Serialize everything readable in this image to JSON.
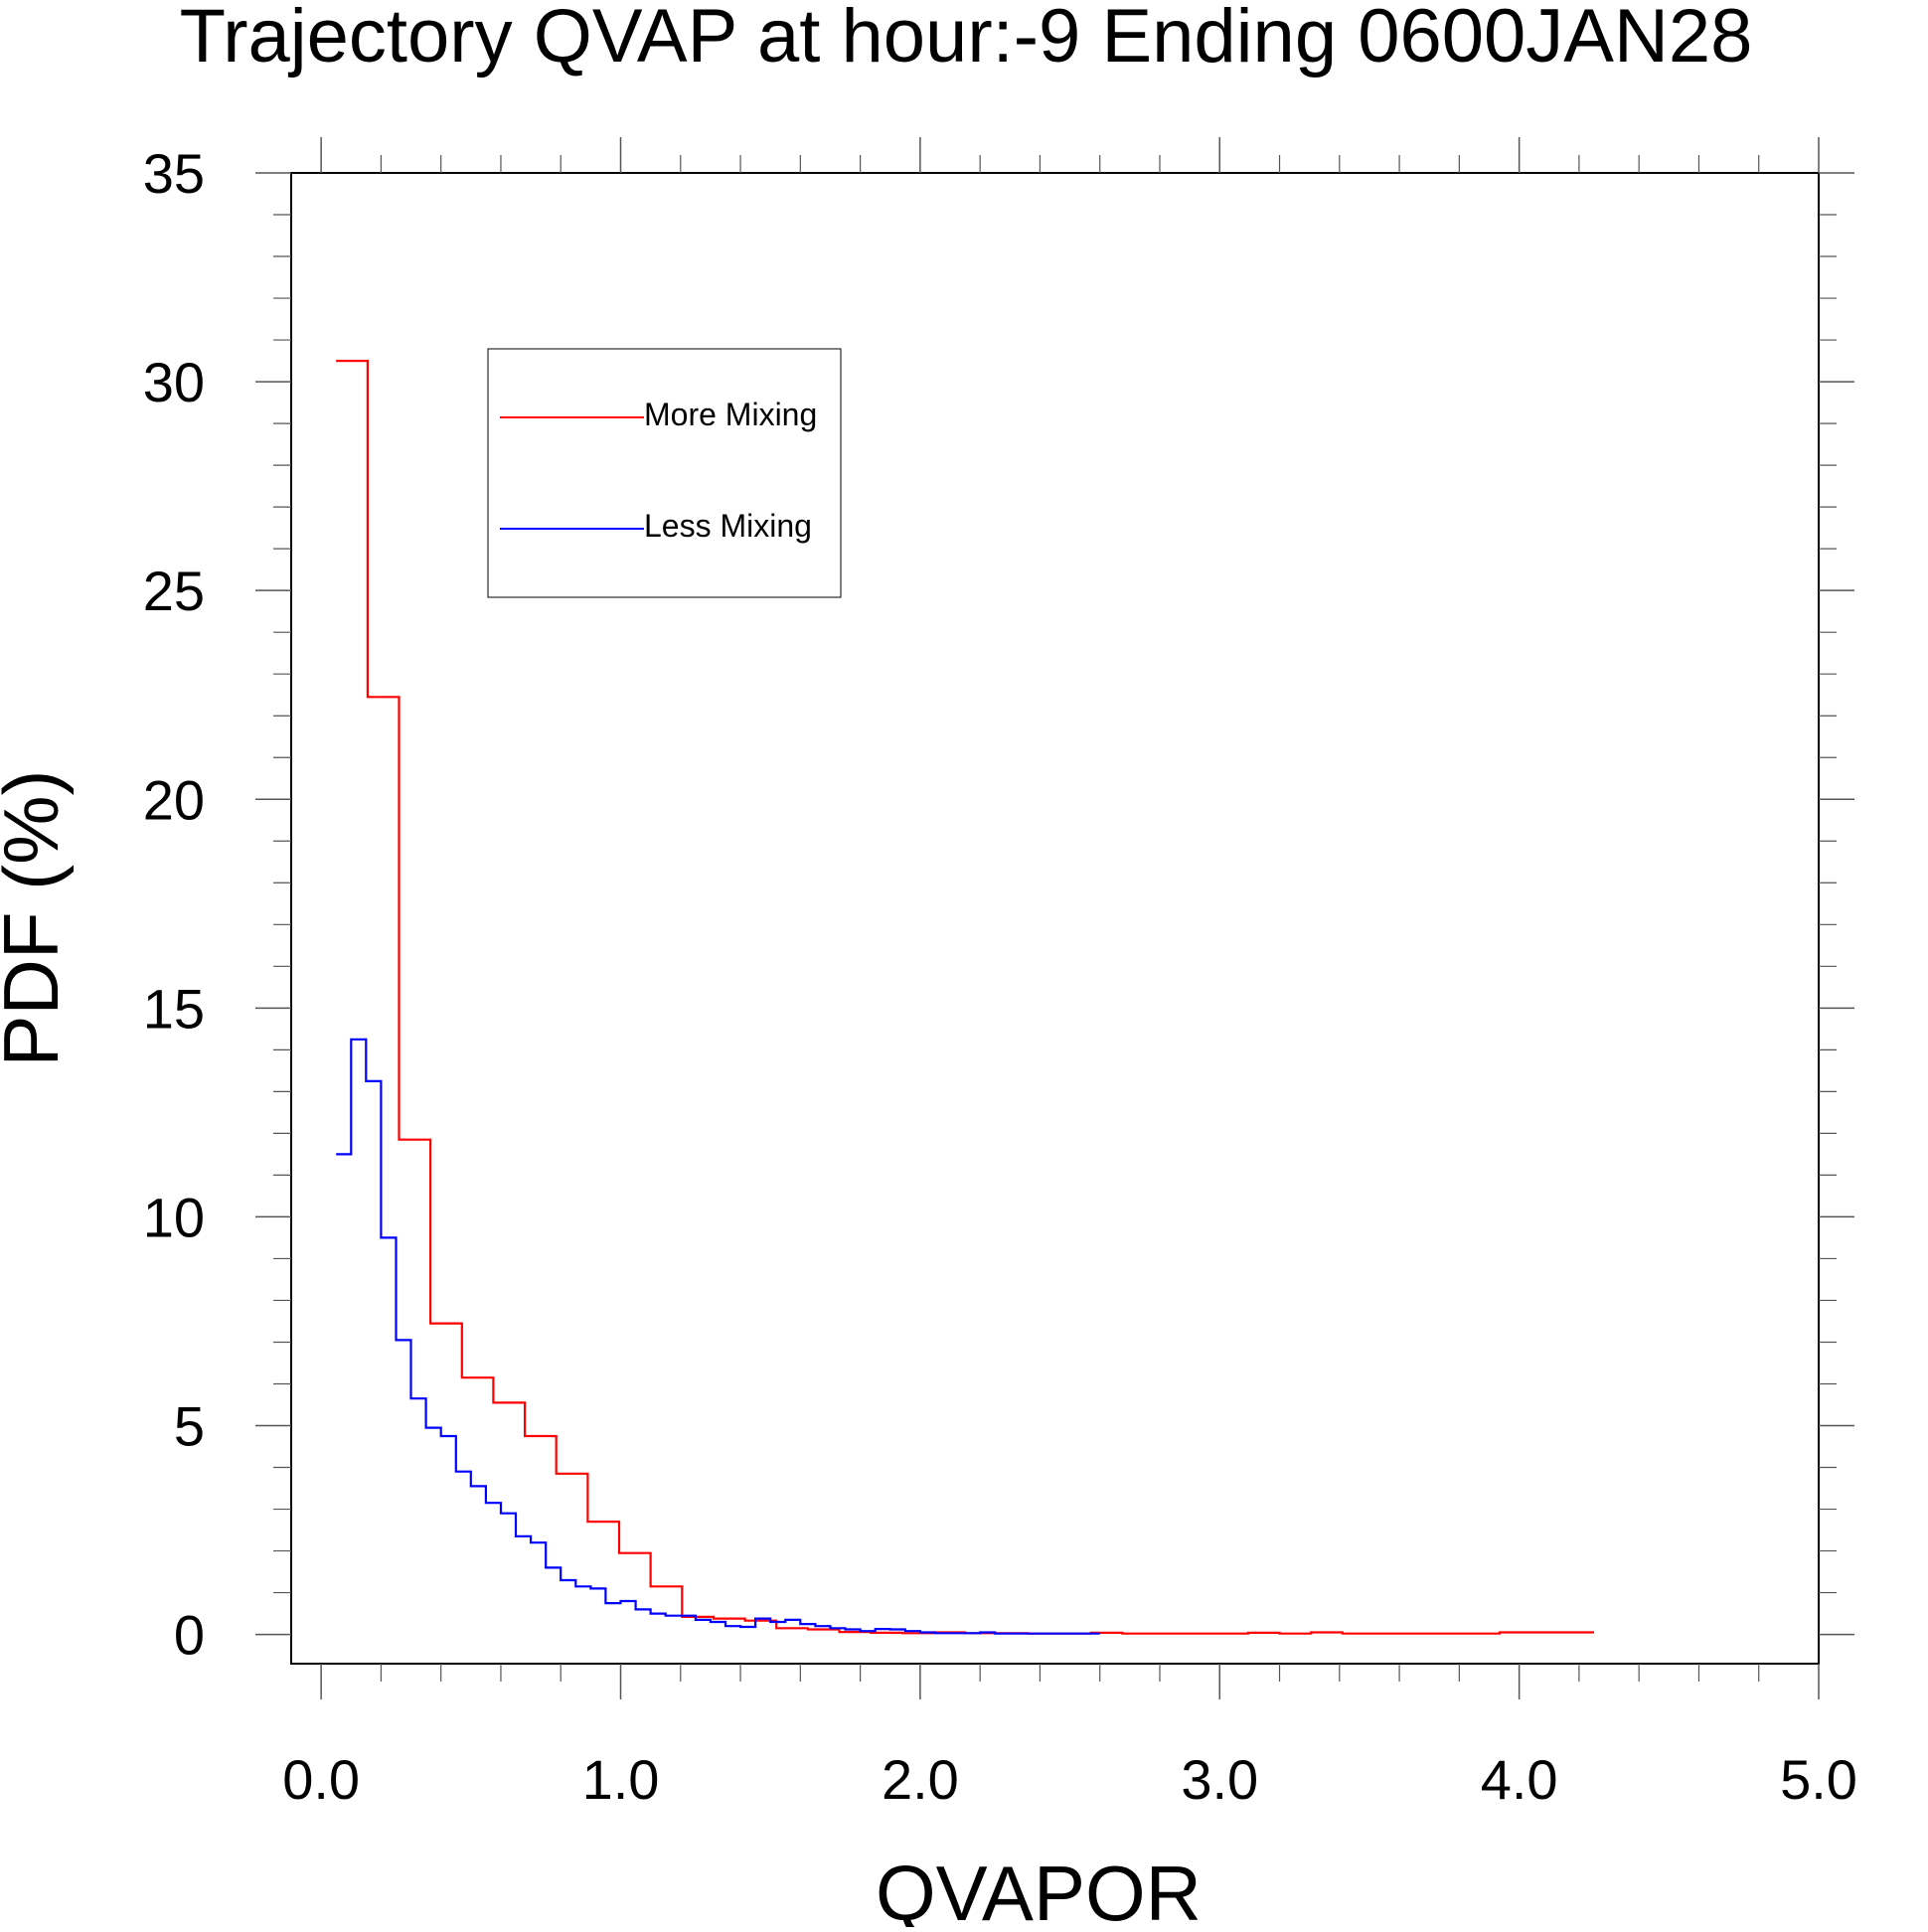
{
  "chart_data": {
    "type": "line",
    "title": "Trajectory QVAP at hour:-9 Ending 0600JAN28",
    "xlabel": "QVAPOR",
    "ylabel": "PDF (%)",
    "xlim": [
      -0.1,
      5.0
    ],
    "ylim": [
      -0.7,
      35.0
    ],
    "x_ticks": [
      0.0,
      1.0,
      2.0,
      3.0,
      4.0,
      5.0
    ],
    "x_tick_labels": [
      "0.0",
      "1.0",
      "2.0",
      "3.0",
      "4.0",
      "5.0"
    ],
    "y_ticks": [
      0,
      5,
      10,
      15,
      20,
      25,
      30,
      35
    ],
    "y_tick_labels": [
      "0",
      "5",
      "10",
      "15",
      "20",
      "25",
      "30",
      "35"
    ],
    "grid": false,
    "legend_position": "upper-left",
    "series": [
      {
        "name": "More Mixing",
        "color": "#ff0000",
        "step": "post",
        "x": [
          0.05,
          0.155,
          0.26,
          0.365,
          0.47,
          0.575,
          0.68,
          0.785,
          0.89,
          0.995,
          1.1,
          1.205,
          1.31,
          1.415,
          1.52,
          1.625,
          1.73,
          1.835,
          1.94,
          2.045,
          2.15,
          2.255,
          2.36,
          2.465,
          2.57,
          2.675,
          2.78,
          2.885,
          2.99,
          3.095,
          3.2,
          3.305,
          3.41,
          3.515,
          3.62,
          3.725,
          3.83,
          3.935,
          4.04,
          4.145
        ],
        "y": [
          30.5,
          22.45,
          11.85,
          7.45,
          6.15,
          5.55,
          4.75,
          3.85,
          2.7,
          1.95,
          1.15,
          0.42,
          0.38,
          0.33,
          0.15,
          0.12,
          0.06,
          0.04,
          0.03,
          0.05,
          0.03,
          0.03,
          0.02,
          0.02,
          0.04,
          0.02,
          0.02,
          0.02,
          0.02,
          0.04,
          0.02,
          0.05,
          0.02,
          0.02,
          0.02,
          0.02,
          0.02,
          0.05,
          0.05,
          0.05
        ]
      },
      {
        "name": "Less Mixing",
        "color": "#0000ff",
        "step": "post",
        "x": [
          0.05,
          0.1,
          0.15,
          0.2,
          0.25,
          0.3,
          0.35,
          0.4,
          0.45,
          0.5,
          0.55,
          0.6,
          0.65,
          0.7,
          0.75,
          0.8,
          0.85,
          0.9,
          0.95,
          1.0,
          1.05,
          1.1,
          1.15,
          1.2,
          1.25,
          1.3,
          1.35,
          1.4,
          1.45,
          1.5,
          1.55,
          1.6,
          1.65,
          1.7,
          1.75,
          1.8,
          1.85,
          1.9,
          1.95,
          2.0,
          2.05,
          2.1,
          2.15,
          2.2,
          2.25,
          2.3,
          2.35,
          2.4,
          2.45,
          2.5,
          2.55
        ],
        "y": [
          11.5,
          14.25,
          13.25,
          9.5,
          7.05,
          5.65,
          4.95,
          4.75,
          3.9,
          3.55,
          3.15,
          2.9,
          2.35,
          2.2,
          1.6,
          1.3,
          1.15,
          1.1,
          0.75,
          0.8,
          0.6,
          0.5,
          0.45,
          0.45,
          0.35,
          0.3,
          0.2,
          0.18,
          0.38,
          0.3,
          0.35,
          0.25,
          0.2,
          0.15,
          0.12,
          0.08,
          0.13,
          0.12,
          0.08,
          0.05,
          0.03,
          0.03,
          0.03,
          0.05,
          0.02,
          0.02,
          0.02,
          0.02,
          0.02,
          0.02,
          0.02
        ]
      }
    ]
  }
}
